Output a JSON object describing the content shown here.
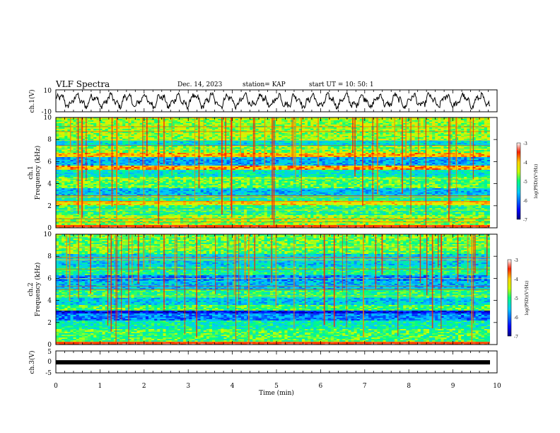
{
  "header": {
    "title": "VLF Spectra",
    "date": "Dec. 14, 2023",
    "station": "station= KAP",
    "start": "start  UT =   10: 50: 1"
  },
  "chart_data": [
    {
      "type": "line",
      "panel": "ch1-waveform",
      "ylabel": "ch.1(V)",
      "ylim": [
        -10,
        10
      ],
      "yticks": [
        "10",
        "-10"
      ],
      "xlim": [
        0,
        10
      ],
      "description_values": "noisy waveform oscillating roughly between -7 and 7 V",
      "color": "#000000"
    },
    {
      "type": "heatmap",
      "panel": "ch1-spectrogram",
      "ylabel": "ch.1\nFrequency (kHz)",
      "ylabel_line1": "ch.1",
      "ylabel_line2": "Frequency (kHz)",
      "ylim": [
        0,
        10
      ],
      "yticks": [
        "0",
        "2",
        "4",
        "6",
        "8",
        "10"
      ],
      "xlim": [
        0,
        10
      ],
      "colorbar": {
        "label": "log(PSD)(V²/Hz)",
        "range": [
          -7,
          -3
        ],
        "ticks": [
          "-3",
          "-4",
          "-5",
          "-6",
          "-7"
        ]
      },
      "bands_khz": [
        {
          "lo": 0.0,
          "hi": 0.3,
          "level": -3.5
        },
        {
          "lo": 0.3,
          "hi": 1.2,
          "level": -4.6
        },
        {
          "lo": 1.2,
          "hi": 2.0,
          "level": -5.0
        },
        {
          "lo": 2.0,
          "hi": 2.4,
          "level": -4.2
        },
        {
          "lo": 2.4,
          "hi": 3.0,
          "level": -5.1
        },
        {
          "lo": 3.0,
          "hi": 3.6,
          "level": -5.6
        },
        {
          "lo": 3.6,
          "hi": 4.6,
          "level": -4.8
        },
        {
          "lo": 4.6,
          "hi": 5.2,
          "level": -5.3
        },
        {
          "lo": 5.2,
          "hi": 5.6,
          "level": -3.9
        },
        {
          "lo": 5.6,
          "hi": 6.4,
          "level": -5.7
        },
        {
          "lo": 6.4,
          "hi": 6.8,
          "level": -4.0
        },
        {
          "lo": 6.8,
          "hi": 7.4,
          "level": -4.7
        },
        {
          "lo": 7.4,
          "hi": 7.9,
          "level": -5.4
        },
        {
          "lo": 7.9,
          "hi": 10.0,
          "level": -4.6
        }
      ]
    },
    {
      "type": "heatmap",
      "panel": "ch2-spectrogram",
      "ylabel_line1": "ch.2",
      "ylabel_line2": "Frequency (kHz)",
      "ylim": [
        0,
        10
      ],
      "yticks": [
        "0",
        "2",
        "4",
        "6",
        "8",
        "10"
      ],
      "xlim": [
        0,
        10
      ],
      "colorbar": {
        "label": "log(PSD)(V²/Hz)",
        "range": [
          -7,
          -3
        ],
        "ticks": [
          "-3",
          "-4",
          "-5",
          "-6",
          "-7"
        ]
      },
      "bands_khz": [
        {
          "lo": 0.0,
          "hi": 0.3,
          "level": -3.4
        },
        {
          "lo": 0.3,
          "hi": 1.4,
          "level": -4.9
        },
        {
          "lo": 1.4,
          "hi": 2.2,
          "level": -5.2
        },
        {
          "lo": 2.2,
          "hi": 2.8,
          "level": -5.9
        },
        {
          "lo": 2.8,
          "hi": 3.1,
          "level": -6.5
        },
        {
          "lo": 3.1,
          "hi": 3.6,
          "level": -4.9
        },
        {
          "lo": 3.6,
          "hi": 4.2,
          "level": -5.5
        },
        {
          "lo": 4.2,
          "hi": 5.0,
          "level": -5.0
        },
        {
          "lo": 5.0,
          "hi": 5.8,
          "level": -5.6
        },
        {
          "lo": 5.8,
          "hi": 6.3,
          "level": -5.9
        },
        {
          "lo": 6.3,
          "hi": 7.0,
          "level": -5.1
        },
        {
          "lo": 7.0,
          "hi": 8.2,
          "level": -5.5
        },
        {
          "lo": 8.2,
          "hi": 10.0,
          "level": -4.8
        }
      ]
    },
    {
      "type": "line",
      "panel": "ch3-waveform",
      "ylabel": "ch.3(V)",
      "ylim": [
        -5,
        5
      ],
      "yticks": [
        "5",
        "0",
        "-5"
      ],
      "xlim": [
        0,
        10
      ],
      "xlabel": "Time  (min)",
      "xticks": [
        "0",
        "1",
        "2",
        "3",
        "4",
        "5",
        "6",
        "7",
        "8",
        "9",
        "10"
      ],
      "value": -0.2,
      "color": "#000000"
    }
  ]
}
